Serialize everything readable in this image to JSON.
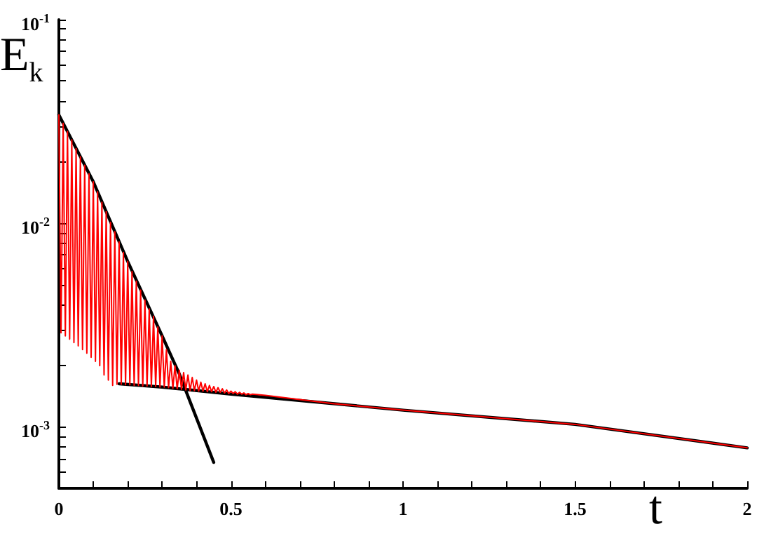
{
  "chart_data": {
    "type": "line",
    "xlabel": "t",
    "ylabel": "E$_{k}$",
    "log": "y",
    "grid": false,
    "marker": "none",
    "line_style": "solid",
    "xlim": [
      0,
      2
    ],
    "xticks": [
      0,
      {
        "value": 0.1,
        "label": null
      },
      {
        "value": 0.2,
        "label": null
      },
      {
        "value": 0.3,
        "label": null
      },
      {
        "value": 0.4,
        "label": null
      },
      0.5,
      {
        "value": 0.6,
        "label": null
      },
      {
        "value": 0.7,
        "label": null
      },
      {
        "value": 0.8,
        "label": null
      },
      {
        "value": 0.9,
        "label": null
      },
      1,
      {
        "value": 1.1,
        "label": null
      },
      {
        "value": 1.2,
        "label": null
      },
      {
        "value": 1.3,
        "label": null
      },
      {
        "value": 1.4,
        "label": null
      },
      1.5,
      {
        "value": 1.6,
        "label": null
      },
      {
        "value": 1.7,
        "label": null
      },
      {
        "value": 1.8,
        "label": null
      },
      {
        "value": 1.9,
        "label": null
      },
      2
    ],
    "ylim": [
      0.0005,
      0.1
    ],
    "yticks": [
      {
        "value": 0.0006,
        "label": null
      },
      {
        "value": 0.0007,
        "label": null
      },
      {
        "value": 0.0008,
        "label": null
      },
      {
        "value": 0.0009,
        "label": null
      },
      {
        "value": 0.001,
        "label": "10$^{-3}$"
      },
      {
        "value": 0.002,
        "label": null
      },
      {
        "value": 0.003,
        "label": null
      },
      {
        "value": 0.004,
        "label": null
      },
      {
        "value": 0.005,
        "label": null
      },
      {
        "value": 0.006,
        "label": null
      },
      {
        "value": 0.007,
        "label": null
      },
      {
        "value": 0.008,
        "label": null
      },
      {
        "value": 0.009,
        "label": null
      },
      {
        "value": 0.01,
        "label": "10$^{-2}$"
      },
      {
        "value": 0.02,
        "label": null
      },
      {
        "value": 0.03,
        "label": null
      },
      {
        "value": 0.04,
        "label": null
      },
      {
        "value": 0.05,
        "label": null
      },
      {
        "value": 0.06,
        "label": null
      },
      {
        "value": 0.07,
        "label": null
      },
      {
        "value": 0.08,
        "label": null
      },
      {
        "value": 0.09,
        "label": null
      },
      {
        "value": 0.1,
        "label": "10$^{-1}$"
      }
    ],
    "series": [
      {
        "color": "#ff0000",
        "x": [
          0,
          0.00625,
          0.0125,
          0.01875,
          0.025,
          0.03125,
          0.0375,
          0.04375,
          0.05,
          0.05625,
          0.0625,
          0.06875,
          0.075,
          0.08125,
          0.0875,
          0.09375,
          0.1,
          0.10625,
          0.1125,
          0.11875,
          0.125,
          0.13125,
          0.1375,
          0.14375,
          0.15,
          0.15625,
          0.1625,
          0.16875,
          0.175,
          0.18125,
          0.1875,
          0.19375,
          0.2,
          0.20625,
          0.2125,
          0.21875,
          0.225,
          0.23125,
          0.2375,
          0.24375,
          0.25,
          0.25625,
          0.2625,
          0.26875,
          0.275,
          0.28125,
          0.2875,
          0.29375,
          0.3,
          0.30625,
          0.3125,
          0.31875,
          0.325,
          0.33125,
          0.3375,
          0.34375,
          0.35,
          0.35625,
          0.3625,
          0.36875,
          0.375,
          0.38125,
          0.3875,
          0.39375,
          0.4,
          0.40625,
          0.4125,
          0.41875,
          0.425,
          0.43125,
          0.4375,
          0.44375,
          0.45,
          0.45625,
          0.4625,
          0.46875,
          0.475,
          0.48125,
          0.4875,
          0.49375,
          0.5,
          0.50625,
          0.5125,
          0.51875,
          0.525,
          0.53125,
          0.5375,
          0.54375,
          0.55,
          0.55625,
          0.5625,
          0.6,
          0.8,
          1,
          1.5,
          2
        ],
        "values": [
          0.0341,
          0.0029,
          0.031,
          0.0028,
          0.0282,
          0.0027,
          0.0257,
          0.0026,
          0.0233,
          0.0025,
          0.0212,
          0.0024,
          0.0193,
          0.0023,
          0.0175,
          0.0022,
          0.016,
          0.0021,
          0.0143,
          0.002,
          0.0127,
          0.0018,
          0.0114,
          0.0017,
          0.0101,
          0.0016,
          0.0091,
          0.00162,
          0.0081,
          0.00162,
          0.0072,
          0.00161,
          0.0065,
          0.00161,
          0.0058,
          0.0016,
          0.0052,
          0.0016,
          0.0047,
          0.00159,
          0.0042,
          0.00159,
          0.0038,
          0.00158,
          0.0035,
          0.00158,
          0.0031,
          0.00157,
          0.0028,
          0.00157,
          0.0024,
          0.00156,
          0.0021,
          0.00155,
          0.002,
          0.00154,
          0.0019,
          0.00153,
          0.00185,
          0.00152,
          0.0018,
          0.00151,
          0.00175,
          0.00151,
          0.0017,
          0.0015,
          0.00166,
          0.0015,
          0.00163,
          0.00149,
          0.0016,
          0.00149,
          0.00158,
          0.00148,
          0.00156,
          0.00148,
          0.00154,
          0.00147,
          0.00152,
          0.00146,
          0.0015,
          0.00146,
          0.00149,
          0.00145,
          0.00148,
          0.00145,
          0.00147,
          0.00144,
          0.00146,
          0.00144,
          0.00145,
          0.00143,
          0.0013,
          0.00121,
          0.00103,
          0.00079
        ]
      },
      {
        "color": "#000000",
        "x": [
          0,
          0.1,
          0.2,
          0.3,
          0.35,
          0.45
        ],
        "values": [
          0.0341,
          0.016,
          0.0065,
          0.0028,
          0.00182,
          0.00067
        ]
      },
      {
        "color": "#000000",
        "x": [
          0.175,
          0.3,
          0.5,
          1,
          1.5,
          2
        ],
        "values": [
          0.00163,
          0.00157,
          0.00145,
          0.00121,
          0.00103,
          0.00079
        ]
      }
    ]
  }
}
